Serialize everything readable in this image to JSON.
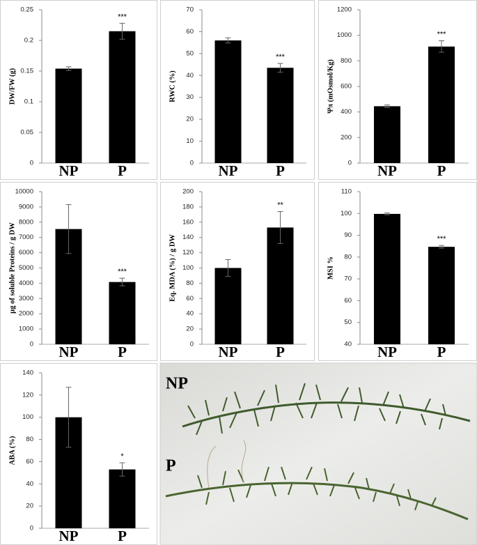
{
  "chart_data": [
    {
      "type": "bar",
      "y_label": "DW/FW (g)",
      "categories": [
        "NP",
        "P"
      ],
      "values": [
        0.154,
        0.215
      ],
      "errors": [
        0.003,
        0.013
      ],
      "annotation": "***",
      "color": "#000000",
      "ylim": [
        0,
        0.25
      ],
      "yticks": [
        0,
        0.05,
        0.1,
        0.15,
        0.2,
        0.25
      ]
    },
    {
      "type": "bar",
      "y_label": "RWC (%)",
      "categories": [
        "NP",
        "P"
      ],
      "values": [
        56,
        43.5
      ],
      "errors": [
        1.2,
        2
      ],
      "annotation": "***",
      "color": "#000000",
      "ylim": [
        0,
        70
      ],
      "yticks": [
        0,
        10,
        20,
        30,
        40,
        50,
        60,
        70
      ]
    },
    {
      "type": "bar",
      "y_label": "Ψπ (mOsmol/Kg)",
      "categories": [
        "NP",
        "P"
      ],
      "values": [
        445,
        912
      ],
      "errors": [
        10,
        45
      ],
      "annotation": "***",
      "color": "#000000",
      "ylim": [
        0,
        1200
      ],
      "yticks": [
        0,
        200,
        400,
        600,
        800,
        1000,
        1200
      ]
    },
    {
      "type": "bar",
      "y_label": "µg of soluble Proteins / g DW",
      "categories": [
        "NP",
        "P"
      ],
      "values": [
        7550,
        4080
      ],
      "errors": [
        1600,
        250
      ],
      "annotation": "***",
      "color": "#000000",
      "ylim": [
        0,
        10000
      ],
      "yticks": [
        0,
        1000,
        2000,
        3000,
        4000,
        5000,
        6000,
        7000,
        8000,
        9000,
        10000
      ]
    },
    {
      "type": "bar",
      "y_label": "Eq. MDA (%) / g DW",
      "categories": [
        "NP",
        "P"
      ],
      "values": [
        100,
        153
      ],
      "errors": [
        11,
        21
      ],
      "annotation": "**",
      "color": "#000000",
      "ylim": [
        0,
        200
      ],
      "yticks": [
        0,
        20,
        40,
        60,
        80,
        100,
        120,
        140,
        160,
        180,
        200
      ]
    },
    {
      "type": "bar",
      "y_label": "MSI %",
      "categories": [
        "NP",
        "P"
      ],
      "values": [
        99.8,
        84.7
      ],
      "errors": [
        0.4,
        0.6
      ],
      "annotation": "***",
      "color": "#000000",
      "ylim": [
        40,
        110
      ],
      "yticks": [
        40,
        50,
        60,
        70,
        80,
        90,
        100,
        110
      ]
    },
    {
      "type": "bar",
      "y_label": "ABA (%)",
      "categories": [
        "NP",
        "P"
      ],
      "values": [
        100,
        53
      ],
      "errors": [
        27,
        6
      ],
      "annotation": "*",
      "color": "#000000",
      "ylim": [
        0,
        140
      ],
      "yticks": [
        0,
        20,
        40,
        60,
        80,
        100,
        120,
        140
      ]
    }
  ],
  "photo": {
    "labels": [
      "NP",
      "P"
    ]
  }
}
